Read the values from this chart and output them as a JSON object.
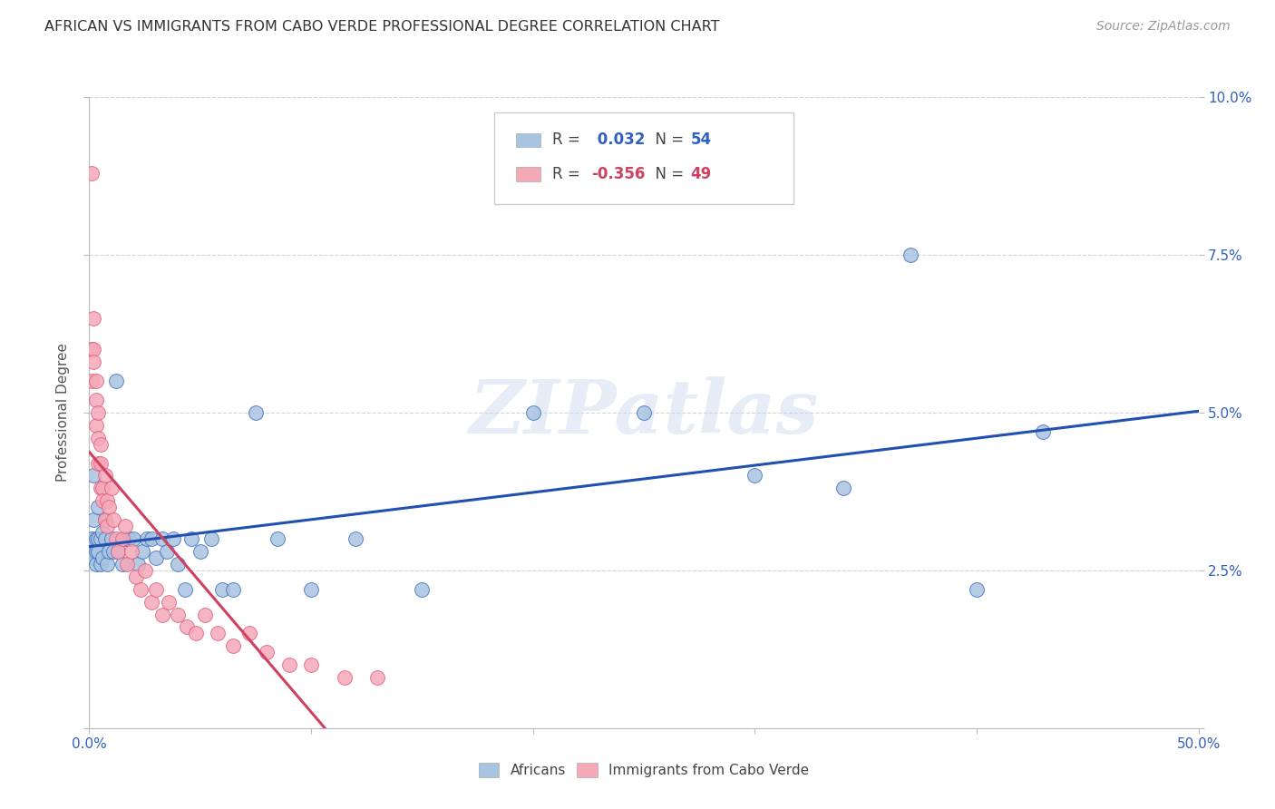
{
  "title": "AFRICAN VS IMMIGRANTS FROM CABO VERDE PROFESSIONAL DEGREE CORRELATION CHART",
  "source": "Source: ZipAtlas.com",
  "ylabel": "Professional Degree",
  "xlim": [
    0,
    0.5
  ],
  "ylim": [
    0,
    0.1
  ],
  "xticks": [
    0.0,
    0.1,
    0.2,
    0.3,
    0.4,
    0.5
  ],
  "yticks": [
    0.0,
    0.025,
    0.05,
    0.075,
    0.1
  ],
  "xticklabels_show": [
    "0.0%",
    "",
    "",
    "",
    "",
    "50.0%"
  ],
  "yticklabels_right": [
    "",
    "2.5%",
    "5.0%",
    "7.5%",
    "10.0%"
  ],
  "african_color": "#a8c4e0",
  "cabo_verde_color": "#f4a8b8",
  "african_edge_color": "#4070c0",
  "cabo_verde_edge_color": "#e06080",
  "african_line_color": "#2050b0",
  "cabo_verde_line_color": "#d04060",
  "background_color": "#ffffff",
  "grid_color": "#d0d0d0",
  "watermark": "ZIPatlas",
  "legend_R_african": "0.032",
  "legend_N_african": "54",
  "legend_R_cabo": "-0.356",
  "legend_N_cabo": "49",
  "african_x": [
    0.001,
    0.001,
    0.002,
    0.002,
    0.002,
    0.003,
    0.003,
    0.003,
    0.004,
    0.004,
    0.004,
    0.005,
    0.005,
    0.006,
    0.006,
    0.007,
    0.007,
    0.008,
    0.009,
    0.01,
    0.011,
    0.012,
    0.013,
    0.015,
    0.016,
    0.018,
    0.02,
    0.022,
    0.024,
    0.026,
    0.028,
    0.03,
    0.033,
    0.035,
    0.038,
    0.04,
    0.043,
    0.046,
    0.05,
    0.055,
    0.06,
    0.065,
    0.075,
    0.085,
    0.1,
    0.12,
    0.15,
    0.2,
    0.25,
    0.3,
    0.34,
    0.37,
    0.4,
    0.43
  ],
  "african_y": [
    0.028,
    0.03,
    0.027,
    0.033,
    0.04,
    0.026,
    0.028,
    0.03,
    0.028,
    0.03,
    0.035,
    0.026,
    0.03,
    0.027,
    0.031,
    0.03,
    0.033,
    0.026,
    0.028,
    0.03,
    0.028,
    0.055,
    0.028,
    0.026,
    0.03,
    0.03,
    0.03,
    0.026,
    0.028,
    0.03,
    0.03,
    0.027,
    0.03,
    0.028,
    0.03,
    0.026,
    0.022,
    0.03,
    0.028,
    0.03,
    0.022,
    0.022,
    0.05,
    0.03,
    0.022,
    0.03,
    0.022,
    0.05,
    0.05,
    0.04,
    0.038,
    0.075,
    0.022,
    0.047
  ],
  "cabo_x": [
    0.001,
    0.001,
    0.001,
    0.002,
    0.002,
    0.002,
    0.003,
    0.003,
    0.003,
    0.004,
    0.004,
    0.004,
    0.005,
    0.005,
    0.005,
    0.006,
    0.006,
    0.007,
    0.007,
    0.008,
    0.008,
    0.009,
    0.01,
    0.011,
    0.012,
    0.013,
    0.015,
    0.016,
    0.017,
    0.019,
    0.021,
    0.023,
    0.025,
    0.028,
    0.03,
    0.033,
    0.036,
    0.04,
    0.044,
    0.048,
    0.052,
    0.058,
    0.065,
    0.072,
    0.08,
    0.09,
    0.1,
    0.115,
    0.13
  ],
  "cabo_y": [
    0.088,
    0.06,
    0.055,
    0.065,
    0.06,
    0.058,
    0.055,
    0.052,
    0.048,
    0.05,
    0.046,
    0.042,
    0.045,
    0.042,
    0.038,
    0.038,
    0.036,
    0.04,
    0.033,
    0.036,
    0.032,
    0.035,
    0.038,
    0.033,
    0.03,
    0.028,
    0.03,
    0.032,
    0.026,
    0.028,
    0.024,
    0.022,
    0.025,
    0.02,
    0.022,
    0.018,
    0.02,
    0.018,
    0.016,
    0.015,
    0.018,
    0.015,
    0.013,
    0.015,
    0.012,
    0.01,
    0.01,
    0.008,
    0.008
  ]
}
